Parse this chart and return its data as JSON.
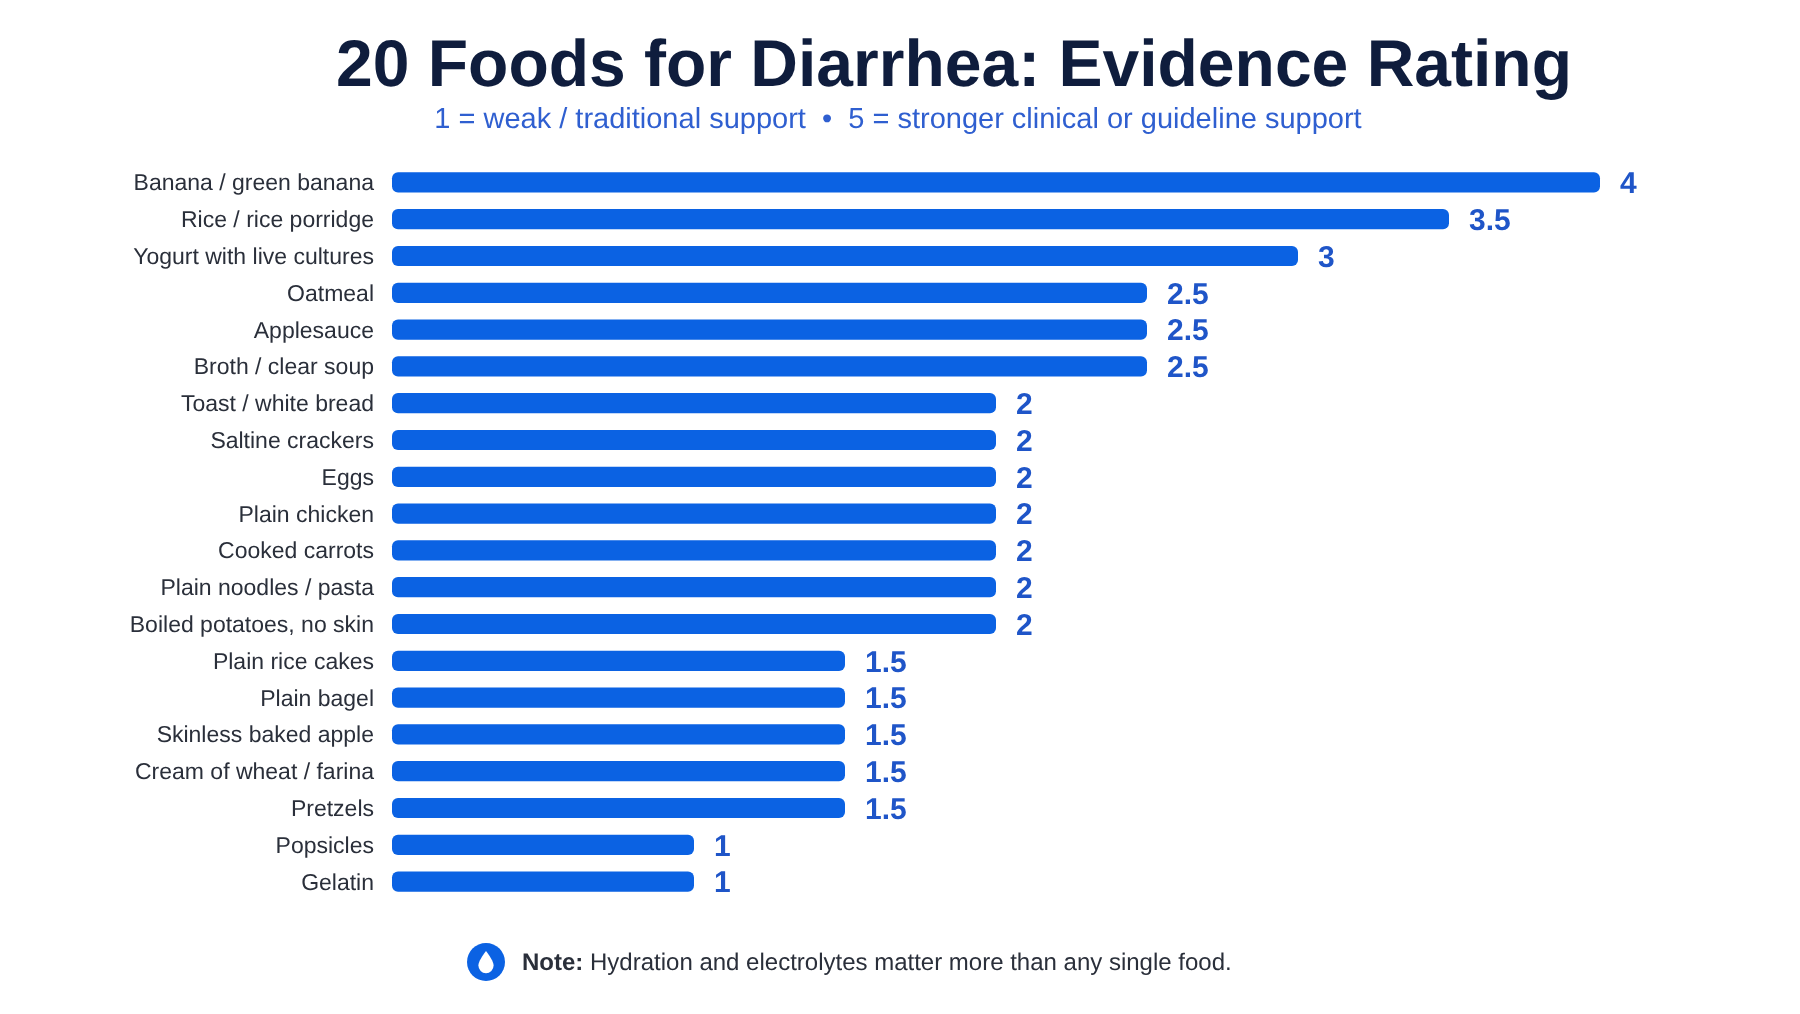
{
  "chart_data": {
    "type": "bar",
    "orientation": "horizontal",
    "title": "20 Foods for Diarrhea: Evidence Rating",
    "subtitle": "1 = weak / traditional support  •  5 = stronger clinical or guideline support",
    "categories": [
      "Banana / green banana",
      "Rice / rice porridge",
      "Yogurt with live cultures",
      "Oatmeal",
      "Applesauce",
      "Broth / clear soup",
      "Toast / white bread",
      "Saltine crackers",
      "Eggs",
      "Plain chicken",
      "Cooked carrots",
      "Plain noodles / pasta",
      "Boiled potatoes, no skin",
      "Plain rice cakes",
      "Plain bagel",
      "Skinless baked apple",
      "Cream of wheat / farina",
      "Pretzels",
      "Popsicles",
      "Gelatin"
    ],
    "values": [
      4,
      3.5,
      3,
      2.5,
      2.5,
      2.5,
      2,
      2,
      2,
      2,
      2,
      2,
      2,
      1.5,
      1.5,
      1.5,
      1.5,
      1.5,
      1,
      1
    ],
    "color": "#0b62e3",
    "data_labels": true,
    "tick_labels": "y",
    "annotations": [
      "Note: Hydration and electrolytes matter more than any single food."
    ]
  }
}
